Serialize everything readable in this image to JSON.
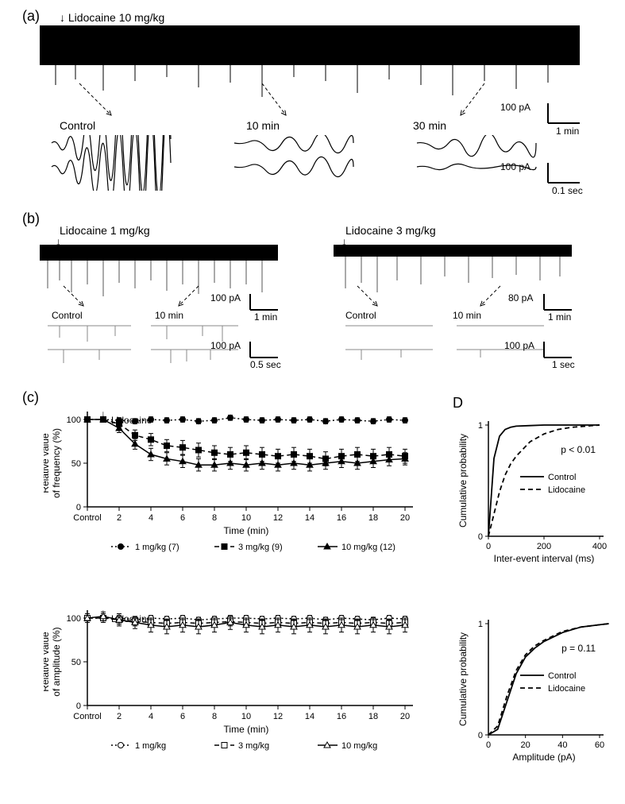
{
  "panel_a": {
    "label": "(a)",
    "injection_label": "Lidocaine 10 mg/kg",
    "timepoints": [
      "Control",
      "10 min",
      "30 min"
    ],
    "scale_top": {
      "y_label": "100 pA",
      "x_label": "1 min"
    },
    "scale_bottom": {
      "y_label": "100 pA",
      "x_label": "0.1 sec"
    }
  },
  "panel_b": {
    "label": "(b)",
    "left_injection": "Lidocaine 1 mg/kg",
    "right_injection": "Lidocaine 3 mg/kg",
    "timepoints": [
      "Control",
      "10 min"
    ],
    "left_scale_top": {
      "y_label": "100 pA",
      "x_label": "1 min"
    },
    "left_scale_bottom": {
      "y_label": "100 pA",
      "x_label": "0.5 sec"
    },
    "right_scale_top": {
      "y_label": "80 pA",
      "x_label": "1 min"
    },
    "right_scale_bottom": {
      "y_label": "100 pA",
      "x_label": "1 sec"
    }
  },
  "panel_c": {
    "label": "(c)",
    "arrow_label": "Lidocaine",
    "freq_chart": {
      "ylabel": "Relative value\nof frequency (%)",
      "xlabel": "Time (min)",
      "ylim": [
        0,
        100
      ],
      "yticks": [
        0,
        50,
        100
      ],
      "xticks_label": [
        "Control",
        "2",
        "4",
        "6",
        "8",
        "10",
        "12",
        "14",
        "16",
        "18",
        "20"
      ],
      "xticks_pos": [
        0,
        2,
        4,
        6,
        8,
        10,
        12,
        14,
        16,
        18,
        20
      ],
      "series": {
        "1mg": {
          "label": "1 mg/kg (7)",
          "marker": "circle-filled",
          "line": "dotted",
          "color": "#000",
          "x": [
            0,
            1,
            2,
            3,
            4,
            5,
            6,
            7,
            8,
            9,
            10,
            11,
            12,
            13,
            14,
            15,
            16,
            17,
            18,
            19,
            20
          ],
          "y": [
            100,
            100,
            99,
            98,
            100,
            99,
            100,
            98,
            99,
            102,
            100,
            99,
            100,
            99,
            100,
            98,
            100,
            99,
            98,
            100,
            99
          ],
          "err": [
            3,
            3,
            3,
            3,
            3,
            3,
            3,
            3,
            3,
            3,
            3,
            3,
            3,
            3,
            3,
            3,
            3,
            3,
            3,
            3,
            3
          ]
        },
        "3mg": {
          "label": "3 mg/kg (9)",
          "marker": "square-filled",
          "line": "dashed",
          "color": "#000",
          "x": [
            0,
            1,
            2,
            3,
            4,
            5,
            6,
            7,
            8,
            9,
            10,
            11,
            12,
            13,
            14,
            15,
            16,
            17,
            18,
            19,
            20
          ],
          "y": [
            100,
            100,
            95,
            82,
            77,
            70,
            68,
            65,
            62,
            60,
            62,
            60,
            58,
            60,
            58,
            55,
            58,
            60,
            58,
            60,
            58
          ],
          "err": [
            3,
            3,
            5,
            6,
            7,
            7,
            8,
            8,
            8,
            8,
            8,
            8,
            8,
            8,
            8,
            8,
            8,
            8,
            8,
            8,
            8
          ]
        },
        "10mg": {
          "label": "10 mg/kg (12)",
          "marker": "triangle-filled",
          "line": "solid",
          "color": "#000",
          "x": [
            0,
            1,
            2,
            3,
            4,
            5,
            6,
            7,
            8,
            9,
            10,
            11,
            12,
            13,
            14,
            15,
            16,
            17,
            18,
            19,
            20
          ],
          "y": [
            100,
            100,
            90,
            72,
            60,
            55,
            52,
            48,
            48,
            50,
            48,
            50,
            48,
            50,
            48,
            50,
            52,
            50,
            52,
            54,
            55
          ],
          "err": [
            3,
            3,
            5,
            6,
            7,
            7,
            7,
            7,
            7,
            7,
            7,
            7,
            7,
            7,
            7,
            7,
            7,
            7,
            7,
            7,
            7
          ]
        }
      }
    },
    "amp_chart": {
      "ylabel": "Relative value\nof amplitude (%)",
      "xlabel": "Time (min)",
      "ylim": [
        0,
        100
      ],
      "yticks": [
        0,
        50,
        100
      ],
      "xticks_label": [
        "Control",
        "2",
        "4",
        "6",
        "8",
        "10",
        "12",
        "14",
        "16",
        "18",
        "20"
      ],
      "series": {
        "1mg": {
          "label": "1 mg/kg",
          "marker": "circle-open",
          "line": "dotted",
          "x": [
            0,
            1,
            2,
            3,
            4,
            5,
            6,
            7,
            8,
            9,
            10,
            11,
            12,
            13,
            14,
            15,
            16,
            17,
            18,
            19,
            20
          ],
          "y": [
            100,
            100,
            100,
            98,
            100,
            99,
            100,
            98,
            99,
            100,
            100,
            99,
            100,
            99,
            100,
            98,
            100,
            99,
            98,
            100,
            99
          ],
          "err": [
            3,
            3,
            3,
            3,
            3,
            3,
            3,
            3,
            3,
            3,
            3,
            3,
            3,
            3,
            3,
            3,
            3,
            3,
            3,
            3,
            3
          ]
        },
        "3mg": {
          "label": "3 mg/kg",
          "marker": "square-open",
          "line": "dashed",
          "x": [
            0,
            1,
            2,
            3,
            4,
            5,
            6,
            7,
            8,
            9,
            10,
            11,
            12,
            13,
            14,
            15,
            16,
            17,
            18,
            19,
            20
          ],
          "y": [
            100,
            100,
            98,
            96,
            95,
            94,
            95,
            94,
            95,
            96,
            95,
            94,
            95,
            94,
            95,
            94,
            95,
            94,
            95,
            94,
            95
          ],
          "err": [
            5,
            5,
            5,
            5,
            5,
            5,
            5,
            5,
            5,
            5,
            5,
            5,
            5,
            5,
            5,
            5,
            5,
            5,
            5,
            5,
            5
          ]
        },
        "10mg": {
          "label": "10 mg/kg",
          "marker": "triangle-open",
          "line": "solid",
          "x": [
            0,
            1,
            2,
            3,
            4,
            5,
            6,
            7,
            8,
            9,
            10,
            11,
            12,
            13,
            14,
            15,
            16,
            17,
            18,
            19,
            20
          ],
          "y": [
            100,
            102,
            98,
            95,
            92,
            90,
            92,
            90,
            92,
            95,
            92,
            90,
            92,
            90,
            92,
            90,
            92,
            90,
            92,
            90,
            92
          ],
          "err": [
            5,
            5,
            7,
            7,
            8,
            8,
            8,
            8,
            8,
            8,
            8,
            8,
            8,
            8,
            8,
            8,
            8,
            8,
            8,
            8,
            8
          ]
        }
      }
    }
  },
  "panel_d": {
    "label": "D",
    "interval_chart": {
      "ylabel": "Cumulative probability",
      "xlabel": "Inter-event interval (ms)",
      "xticks": [
        0,
        200,
        400
      ],
      "yticks": [
        0,
        1
      ],
      "p_value": "p < 0.01",
      "legend": [
        "Control",
        "Lidocaine"
      ],
      "control": {
        "x": [
          0,
          20,
          40,
          60,
          80,
          100,
          150,
          200,
          300,
          400
        ],
        "y": [
          0,
          0.7,
          0.9,
          0.96,
          0.98,
          0.99,
          0.995,
          1,
          1,
          1
        ],
        "line": "solid"
      },
      "lidocaine": {
        "x": [
          0,
          20,
          40,
          60,
          80,
          100,
          150,
          200,
          250,
          300,
          350,
          400
        ],
        "y": [
          0,
          0.2,
          0.4,
          0.55,
          0.65,
          0.72,
          0.85,
          0.92,
          0.96,
          0.98,
          0.99,
          1
        ],
        "line": "dashed"
      }
    },
    "amplitude_chart": {
      "ylabel": "Cumulative probability",
      "xlabel": "Amplitude (pA)",
      "xticks": [
        0,
        20,
        40,
        60
      ],
      "yticks": [
        0,
        1
      ],
      "p_value": "p = 0.11",
      "legend": [
        "Control",
        "Lidocaine"
      ],
      "control": {
        "x": [
          0,
          5,
          10,
          15,
          20,
          25,
          30,
          40,
          50,
          60,
          65
        ],
        "y": [
          0,
          0.05,
          0.3,
          0.55,
          0.7,
          0.78,
          0.84,
          0.92,
          0.97,
          0.99,
          1
        ],
        "line": "solid"
      },
      "lidocaine": {
        "x": [
          0,
          5,
          10,
          15,
          20,
          25,
          30,
          40,
          50,
          60,
          65
        ],
        "y": [
          0,
          0.08,
          0.35,
          0.58,
          0.72,
          0.8,
          0.85,
          0.93,
          0.97,
          0.99,
          1
        ],
        "line": "dashed"
      }
    }
  },
  "colors": {
    "black": "#000000",
    "white": "#ffffff",
    "trace": "#000000"
  }
}
